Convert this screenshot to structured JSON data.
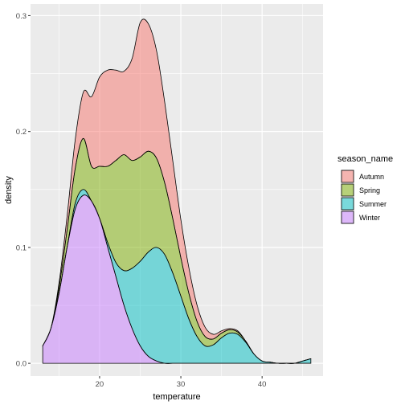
{
  "chart_data": {
    "type": "area",
    "subtype": "stacked-density",
    "xlabel": "temperature",
    "ylabel": "density",
    "xlim": [
      11.5,
      47.5
    ],
    "ylim": [
      -0.011,
      0.31
    ],
    "x_ticks": [
      20,
      30,
      40
    ],
    "y_ticks": [
      0.0,
      0.1,
      0.2,
      0.3
    ],
    "y_tick_labels": [
      "0.0",
      "0.1",
      "0.2",
      "0.3"
    ],
    "grid": true,
    "legend": {
      "title": "season_name",
      "position": "right"
    },
    "x": [
      13,
      14,
      15,
      16,
      17,
      18,
      19,
      20,
      21,
      22,
      23,
      24,
      25,
      26,
      27,
      28,
      29,
      30,
      31,
      32,
      33,
      34,
      35,
      36,
      37,
      38,
      39,
      40,
      41,
      42,
      43,
      44,
      45,
      46
    ],
    "series": [
      {
        "name": "Winter",
        "color": "#C77CFF",
        "values": [
          0.015,
          0.03,
          0.06,
          0.1,
          0.133,
          0.145,
          0.14,
          0.125,
          0.1,
          0.075,
          0.05,
          0.03,
          0.015,
          0.006,
          0.002,
          0,
          0,
          0,
          0,
          0,
          0,
          0,
          0,
          0,
          0,
          0,
          0,
          0,
          0,
          0,
          0,
          0,
          0,
          0
        ]
      },
      {
        "name": "Summer",
        "color": "#00BFC4",
        "values": [
          0,
          0,
          0,
          0,
          0.005,
          0.005,
          0,
          0,
          0.004,
          0.012,
          0.03,
          0.052,
          0.073,
          0.09,
          0.098,
          0.094,
          0.078,
          0.058,
          0.038,
          0.023,
          0.015,
          0.016,
          0.022,
          0.026,
          0.025,
          0.018,
          0.008,
          0.002,
          0.001,
          0,
          0,
          0,
          0.002,
          0.004
        ]
      },
      {
        "name": "Spring",
        "color": "#7CAE00",
        "values": [
          0,
          0,
          0.005,
          0.015,
          0.03,
          0.044,
          0.03,
          0.045,
          0.066,
          0.088,
          0.1,
          0.093,
          0.09,
          0.087,
          0.077,
          0.062,
          0.047,
          0.033,
          0.022,
          0.013,
          0.008,
          0.005,
          0.004,
          0.003,
          0.002,
          0.001,
          0,
          0,
          0,
          0,
          0,
          0,
          0,
          0
        ]
      },
      {
        "name": "Autumn",
        "color": "#F8766D",
        "values": [
          0,
          0,
          0.004,
          0.012,
          0.025,
          0.04,
          0.06,
          0.077,
          0.083,
          0.078,
          0.072,
          0.088,
          0.116,
          0.11,
          0.093,
          0.07,
          0.05,
          0.033,
          0.022,
          0.014,
          0.008,
          0.004,
          0.002,
          0.001,
          0.001,
          0,
          0,
          0,
          0,
          0,
          0,
          0,
          0,
          0
        ]
      }
    ]
  }
}
